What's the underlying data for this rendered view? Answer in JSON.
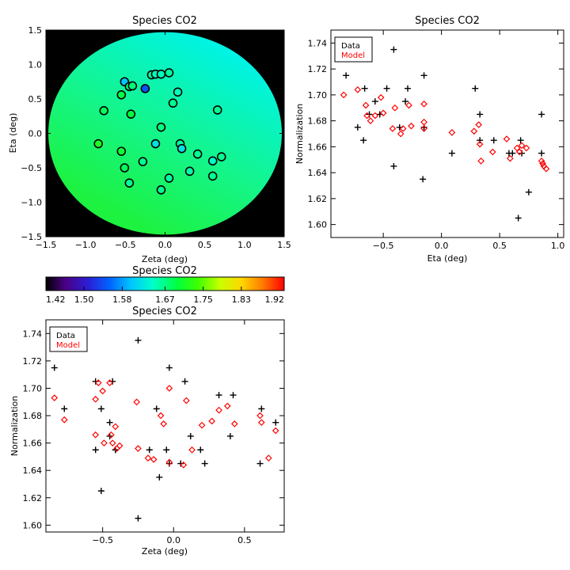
{
  "chart_data": [
    {
      "id": "map",
      "type": "scatter",
      "title": "Species CO2",
      "xlabel": "Zeta (deg)",
      "ylabel": "Eta (deg)",
      "xlim": [
        -1.5,
        1.5
      ],
      "ylim": [
        -1.5,
        1.5
      ],
      "xticks": [
        "−1.5",
        "−1.0",
        "−0.5",
        "0.0",
        "0.5",
        "1.0",
        "1.5"
      ],
      "xtick_values": [
        -1.5,
        -1.0,
        -0.5,
        0.0,
        0.5,
        1.0,
        1.5
      ],
      "yticks": [
        "−1.5",
        "−1.0",
        "−0.5",
        "0.0",
        "0.5",
        "1.0",
        "1.5"
      ],
      "ytick_values": [
        -1.5,
        -1.0,
        -0.5,
        0.0,
        0.5,
        1.0,
        1.5
      ],
      "disk_radius_deg": 1.47,
      "background_color": "#000000",
      "points": [
        {
          "zeta": -0.84,
          "eta": -0.15,
          "value": 1.715
        },
        {
          "zeta": -0.77,
          "eta": 0.33,
          "value": 1.685
        },
        {
          "zeta": -0.55,
          "eta": -0.26,
          "value": 1.705
        },
        {
          "zeta": -0.55,
          "eta": 0.56,
          "value": 1.692
        },
        {
          "zeta": -0.51,
          "eta": 0.75,
          "value": 1.6
        },
        {
          "zeta": -0.51,
          "eta": -0.5,
          "value": 1.685
        },
        {
          "zeta": -0.45,
          "eta": 0.68,
          "value": 1.675
        },
        {
          "zeta": -0.45,
          "eta": -0.72,
          "value": 1.665
        },
        {
          "zeta": -0.43,
          "eta": 0.28,
          "value": 1.695
        },
        {
          "zeta": -0.41,
          "eta": 0.69,
          "value": 1.672
        },
        {
          "zeta": -0.28,
          "eta": -0.41,
          "value": 1.665
        },
        {
          "zeta": -0.25,
          "eta": 0.65,
          "value": 1.545
        },
        {
          "zeta": -0.17,
          "eta": 0.85,
          "value": 1.66
        },
        {
          "zeta": -0.12,
          "eta": 0.86,
          "value": 1.65
        },
        {
          "zeta": -0.12,
          "eta": -0.15,
          "value": 1.62
        },
        {
          "zeta": -0.05,
          "eta": 0.86,
          "value": 1.65
        },
        {
          "zeta": -0.05,
          "eta": 0.09,
          "value": 1.672
        },
        {
          "zeta": -0.05,
          "eta": -0.82,
          "value": 1.665
        },
        {
          "zeta": 0.05,
          "eta": 0.88,
          "value": 1.66
        },
        {
          "zeta": 0.05,
          "eta": -0.65,
          "value": 1.66
        },
        {
          "zeta": 0.1,
          "eta": 0.44,
          "value": 1.665
        },
        {
          "zeta": 0.16,
          "eta": 0.6,
          "value": 1.65
        },
        {
          "zeta": 0.19,
          "eta": -0.15,
          "value": 1.66
        },
        {
          "zeta": 0.21,
          "eta": -0.22,
          "value": 1.62
        },
        {
          "zeta": 0.31,
          "eta": -0.55,
          "value": 1.655
        },
        {
          "zeta": 0.41,
          "eta": -0.3,
          "value": 1.665
        },
        {
          "zeta": 0.6,
          "eta": -0.4,
          "value": 1.645
        },
        {
          "zeta": 0.6,
          "eta": -0.62,
          "value": 1.665
        },
        {
          "zeta": 0.66,
          "eta": 0.34,
          "value": 1.665
        },
        {
          "zeta": 0.71,
          "eta": -0.34,
          "value": 1.665
        }
      ]
    },
    {
      "id": "colorbar",
      "type": "heatmap",
      "title": "Species CO2",
      "range": [
        1.42,
        1.92
      ],
      "tick_labels": [
        "1.42",
        "1.50",
        "1.58",
        "1.67",
        "1.75",
        "1.83",
        "1.92"
      ],
      "tick_values": [
        1.42,
        1.5,
        1.58,
        1.67,
        1.75,
        1.83,
        1.92
      ]
    },
    {
      "id": "eta",
      "type": "scatter",
      "title": "Species CO2",
      "xlabel": "Eta (deg)",
      "ylabel": "Normalization",
      "xlim": [
        -0.95,
        1.05
      ],
      "ylim": [
        1.59,
        1.75
      ],
      "xticks": [
        "−0.5",
        "0.0",
        "0.5",
        "1.0"
      ],
      "xtick_values": [
        -0.5,
        0.0,
        0.5,
        1.0
      ],
      "yticks": [
        "1.60",
        "1.62",
        "1.64",
        "1.66",
        "1.68",
        "1.70",
        "1.72",
        "1.74"
      ],
      "ytick_values": [
        1.6,
        1.62,
        1.64,
        1.66,
        1.68,
        1.7,
        1.72,
        1.74
      ],
      "legend": {
        "position": "top-left",
        "entries": [
          "Data",
          "Model"
        ]
      },
      "series": [
        {
          "name": "Data",
          "marker": "plus",
          "color": "#000000",
          "x": [
            -0.82,
            -0.72,
            -0.67,
            -0.66,
            -0.62,
            -0.57,
            -0.53,
            -0.47,
            -0.41,
            -0.41,
            -0.36,
            -0.31,
            -0.29,
            -0.16,
            -0.15,
            -0.15,
            0.09,
            0.29,
            0.33,
            0.33,
            0.45,
            0.58,
            0.61,
            0.66,
            0.68,
            0.69,
            0.75,
            0.86,
            0.86
          ],
          "y": [
            1.715,
            1.675,
            1.665,
            1.705,
            1.685,
            1.695,
            1.685,
            1.705,
            1.645,
            1.735,
            1.675,
            1.695,
            1.705,
            1.635,
            1.715,
            1.675,
            1.655,
            1.705,
            1.685,
            1.665,
            1.665,
            1.655,
            1.655,
            1.605,
            1.665,
            1.655,
            1.625,
            1.655,
            1.685
          ]
        },
        {
          "name": "Model",
          "marker": "diamond",
          "color": "#ff0000",
          "x": [
            -0.84,
            -0.72,
            -0.65,
            -0.64,
            -0.61,
            -0.57,
            -0.52,
            -0.5,
            -0.42,
            -0.4,
            -0.35,
            -0.33,
            -0.28,
            -0.26,
            -0.15,
            -0.15,
            -0.15,
            0.09,
            0.28,
            0.32,
            0.33,
            0.34,
            0.44,
            0.56,
            0.59,
            0.65,
            0.67,
            0.69,
            0.73,
            0.86,
            0.87,
            0.88,
            0.9
          ],
          "y": [
            1.7,
            1.704,
            1.692,
            1.684,
            1.68,
            1.684,
            1.698,
            1.686,
            1.674,
            1.69,
            1.67,
            1.674,
            1.692,
            1.676,
            1.693,
            1.679,
            1.674,
            1.671,
            1.672,
            1.677,
            1.662,
            1.649,
            1.656,
            1.666,
            1.651,
            1.659,
            1.656,
            1.661,
            1.659,
            1.649,
            1.647,
            1.645,
            1.643
          ]
        }
      ]
    },
    {
      "id": "zeta",
      "type": "scatter",
      "title": "Species CO2",
      "xlabel": "Zeta (deg)",
      "ylabel": "Normalization",
      "xlim": [
        -0.9,
        0.78
      ],
      "ylim": [
        1.595,
        1.75
      ],
      "xticks": [
        "−0.5",
        "0.0",
        "0.5"
      ],
      "xtick_values": [
        -0.5,
        0.0,
        0.5
      ],
      "yticks": [
        "1.60",
        "1.62",
        "1.64",
        "1.66",
        "1.68",
        "1.70",
        "1.72",
        "1.74"
      ],
      "ytick_values": [
        1.6,
        1.62,
        1.64,
        1.66,
        1.68,
        1.7,
        1.72,
        1.74
      ],
      "legend": {
        "position": "top-left",
        "entries": [
          "Data",
          "Model"
        ]
      },
      "series": [
        {
          "name": "Data",
          "marker": "plus",
          "color": "#000000",
          "x": [
            -0.84,
            -0.77,
            -0.55,
            -0.55,
            -0.51,
            -0.51,
            -0.45,
            -0.45,
            -0.43,
            -0.41,
            -0.41,
            -0.25,
            -0.25,
            -0.17,
            -0.12,
            -0.1,
            -0.05,
            -0.03,
            -0.03,
            0.05,
            0.08,
            0.12,
            0.19,
            0.22,
            0.32,
            0.4,
            0.42,
            0.61,
            0.62,
            0.72
          ],
          "y": [
            1.715,
            1.685,
            1.705,
            1.655,
            1.685,
            1.625,
            1.675,
            1.665,
            1.705,
            1.655,
            1.655,
            1.735,
            1.605,
            1.655,
            1.685,
            1.635,
            1.655,
            1.645,
            1.715,
            1.645,
            1.705,
            1.665,
            1.655,
            1.645,
            1.695,
            1.665,
            1.695,
            1.645,
            1.685,
            1.675
          ]
        },
        {
          "name": "Model",
          "marker": "diamond",
          "color": "#ff0000",
          "x": [
            -0.84,
            -0.77,
            -0.55,
            -0.55,
            -0.53,
            -0.5,
            -0.49,
            -0.45,
            -0.44,
            -0.43,
            -0.41,
            -0.4,
            -0.38,
            -0.26,
            -0.25,
            -0.18,
            -0.14,
            -0.09,
            -0.07,
            -0.03,
            -0.03,
            0.07,
            0.09,
            0.13,
            0.2,
            0.27,
            0.32,
            0.38,
            0.43,
            0.61,
            0.62,
            0.67,
            0.72
          ],
          "y": [
            1.693,
            1.677,
            1.692,
            1.666,
            1.704,
            1.698,
            1.66,
            1.704,
            1.666,
            1.66,
            1.672,
            1.656,
            1.658,
            1.69,
            1.656,
            1.649,
            1.648,
            1.68,
            1.674,
            1.7,
            1.646,
            1.644,
            1.691,
            1.655,
            1.673,
            1.676,
            1.684,
            1.687,
            1.674,
            1.68,
            1.675,
            1.649,
            1.669
          ]
        }
      ]
    }
  ]
}
